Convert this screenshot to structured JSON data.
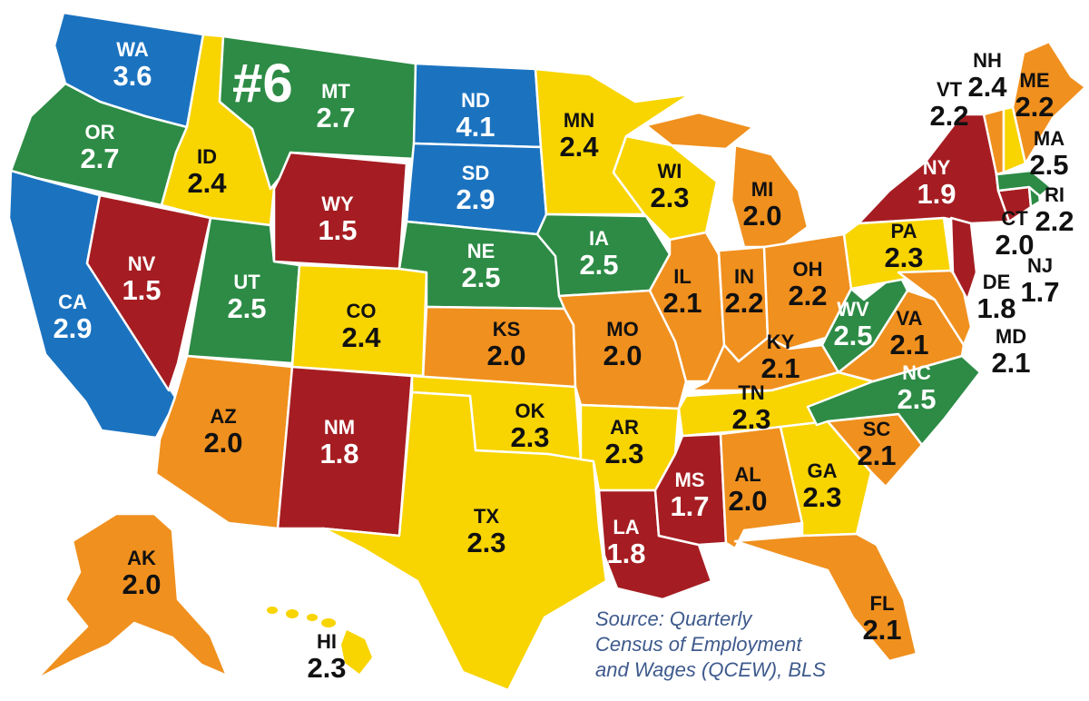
{
  "colors": {
    "blue": "#1b73c0",
    "green": "#2d8b45",
    "yellow": "#f8d400",
    "orange": "#f0901e",
    "red": "#a51d22"
  },
  "rank": "#6",
  "source": {
    "line1": "Source: Quarterly",
    "line2": "Census of Employment",
    "line3": "and Wages (QCEW), BLS"
  },
  "states": {
    "WA": {
      "abbr": "WA",
      "value": "3.6"
    },
    "OR": {
      "abbr": "OR",
      "value": "2.7"
    },
    "CA": {
      "abbr": "CA",
      "value": "2.9"
    },
    "ID": {
      "abbr": "ID",
      "value": "2.4"
    },
    "NV": {
      "abbr": "NV",
      "value": "1.5"
    },
    "MT": {
      "abbr": "MT",
      "value": "2.7"
    },
    "WY": {
      "abbr": "WY",
      "value": "1.5"
    },
    "UT": {
      "abbr": "UT",
      "value": "2.5"
    },
    "AZ": {
      "abbr": "AZ",
      "value": "2.0"
    },
    "CO": {
      "abbr": "CO",
      "value": "2.4"
    },
    "NM": {
      "abbr": "NM",
      "value": "1.8"
    },
    "ND": {
      "abbr": "ND",
      "value": "4.1"
    },
    "SD": {
      "abbr": "SD",
      "value": "2.9"
    },
    "NE": {
      "abbr": "NE",
      "value": "2.5"
    },
    "KS": {
      "abbr": "KS",
      "value": "2.0"
    },
    "OK": {
      "abbr": "OK",
      "value": "2.3"
    },
    "TX": {
      "abbr": "TX",
      "value": "2.3"
    },
    "MN": {
      "abbr": "MN",
      "value": "2.4"
    },
    "IA": {
      "abbr": "IA",
      "value": "2.5"
    },
    "MO": {
      "abbr": "MO",
      "value": "2.0"
    },
    "AR": {
      "abbr": "AR",
      "value": "2.3"
    },
    "LA": {
      "abbr": "LA",
      "value": "1.8"
    },
    "WI": {
      "abbr": "WI",
      "value": "2.3"
    },
    "IL": {
      "abbr": "IL",
      "value": "2.1"
    },
    "MI": {
      "abbr": "MI",
      "value": "2.0"
    },
    "IN": {
      "abbr": "IN",
      "value": "2.2"
    },
    "OH": {
      "abbr": "OH",
      "value": "2.2"
    },
    "KY": {
      "abbr": "KY",
      "value": "2.1"
    },
    "TN": {
      "abbr": "TN",
      "value": "2.3"
    },
    "MS": {
      "abbr": "MS",
      "value": "1.7"
    },
    "AL": {
      "abbr": "AL",
      "value": "2.0"
    },
    "GA": {
      "abbr": "GA",
      "value": "2.3"
    },
    "FL": {
      "abbr": "FL",
      "value": "2.1"
    },
    "SC": {
      "abbr": "SC",
      "value": "2.1"
    },
    "NC": {
      "abbr": "NC",
      "value": "2.5"
    },
    "VA": {
      "abbr": "VA",
      "value": "2.1"
    },
    "WV": {
      "abbr": "WV",
      "value": "2.5"
    },
    "PA": {
      "abbr": "PA",
      "value": "2.3"
    },
    "NY": {
      "abbr": "NY",
      "value": "1.9"
    },
    "VT": {
      "abbr": "VT",
      "value": "2.2"
    },
    "NH": {
      "abbr": "NH",
      "value": "2.4"
    },
    "ME": {
      "abbr": "ME",
      "value": "2.2"
    },
    "MA": {
      "abbr": "MA",
      "value": "2.5"
    },
    "RI": {
      "abbr": "RI",
      "value": "2.2"
    },
    "CT": {
      "abbr": "CT",
      "value": "2.0"
    },
    "NJ": {
      "abbr": "NJ",
      "value": "1.7"
    },
    "DE": {
      "abbr": "DE",
      "value": "1.8"
    },
    "MD": {
      "abbr": "MD",
      "value": "2.1"
    },
    "AK": {
      "abbr": "AK",
      "value": "2.0"
    },
    "HI": {
      "abbr": "HI",
      "value": "2.3"
    }
  }
}
